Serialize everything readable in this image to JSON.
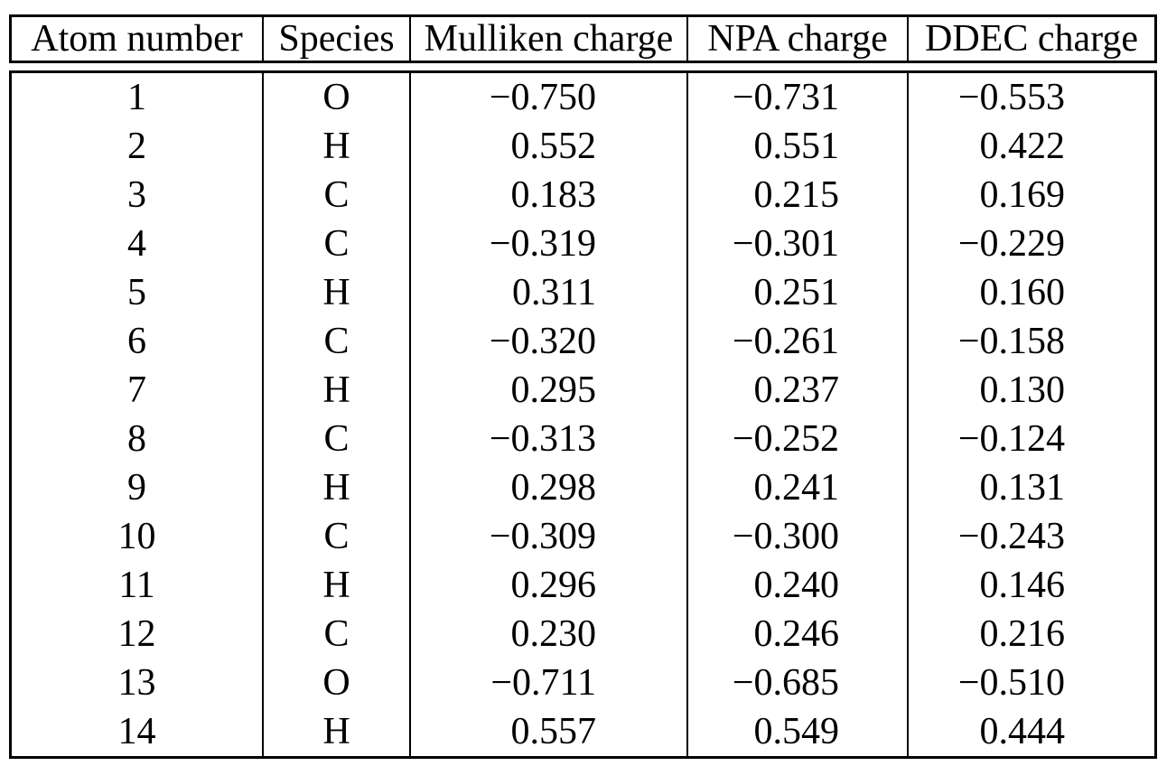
{
  "table": {
    "columns": [
      {
        "key": "atom",
        "label": "Atom number"
      },
      {
        "key": "species",
        "label": "Species"
      },
      {
        "key": "mulliken",
        "label": "Mulliken charge"
      },
      {
        "key": "npa",
        "label": "NPA charge"
      },
      {
        "key": "ddec",
        "label": "DDEC charge"
      }
    ],
    "rows": [
      {
        "atom": "1",
        "species": "O",
        "mulliken": "−0.750",
        "npa": "−0.731",
        "ddec": "−0.553"
      },
      {
        "atom": "2",
        "species": "H",
        "mulliken": "0.552",
        "npa": "0.551",
        "ddec": "0.422"
      },
      {
        "atom": "3",
        "species": "C",
        "mulliken": "0.183",
        "npa": "0.215",
        "ddec": "0.169"
      },
      {
        "atom": "4",
        "species": "C",
        "mulliken": "−0.319",
        "npa": "−0.301",
        "ddec": "−0.229"
      },
      {
        "atom": "5",
        "species": "H",
        "mulliken": "0.311",
        "npa": "0.251",
        "ddec": "0.160"
      },
      {
        "atom": "6",
        "species": "C",
        "mulliken": "−0.320",
        "npa": "−0.261",
        "ddec": "−0.158"
      },
      {
        "atom": "7",
        "species": "H",
        "mulliken": "0.295",
        "npa": "0.237",
        "ddec": "0.130"
      },
      {
        "atom": "8",
        "species": "C",
        "mulliken": "−0.313",
        "npa": "−0.252",
        "ddec": "−0.124"
      },
      {
        "atom": "9",
        "species": "H",
        "mulliken": "0.298",
        "npa": "0.241",
        "ddec": "0.131"
      },
      {
        "atom": "10",
        "species": "C",
        "mulliken": "−0.309",
        "npa": "−0.300",
        "ddec": "−0.243"
      },
      {
        "atom": "11",
        "species": "H",
        "mulliken": "0.296",
        "npa": "0.240",
        "ddec": "0.146"
      },
      {
        "atom": "12",
        "species": "C",
        "mulliken": "0.230",
        "npa": "0.246",
        "ddec": "0.216"
      },
      {
        "atom": "13",
        "species": "O",
        "mulliken": "−0.711",
        "npa": "−0.685",
        "ddec": "−0.510"
      },
      {
        "atom": "14",
        "species": "H",
        "mulliken": "0.557",
        "npa": "0.549",
        "ddec": "0.444"
      }
    ],
    "text_color": "#000000",
    "border_color": "#000000",
    "background_color": "#ffffff"
  }
}
